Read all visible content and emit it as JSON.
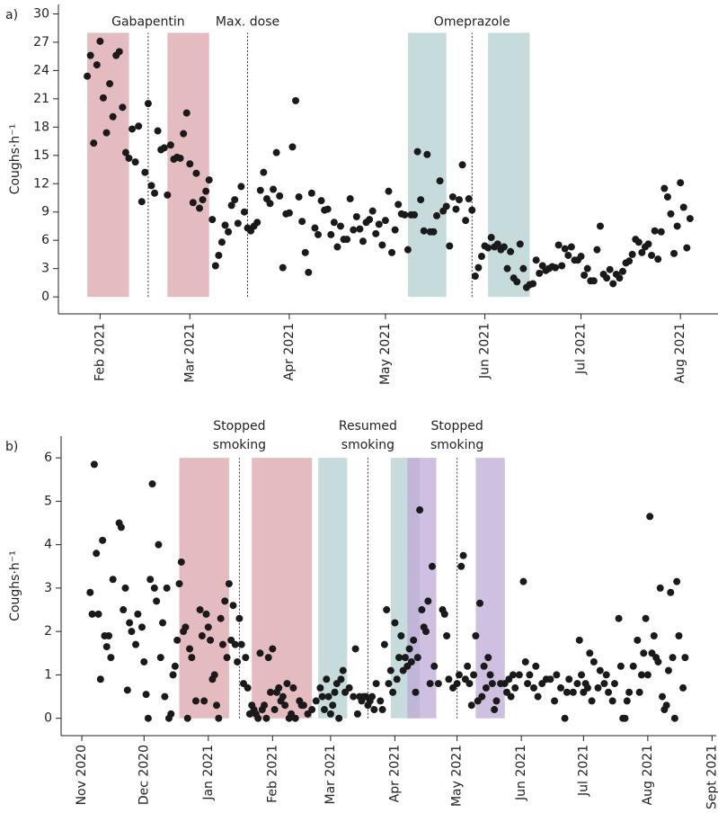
{
  "chart_data": [
    {
      "type": "scatter",
      "panel_label": "a)",
      "y_label": "Coughs·h⁻¹",
      "color": "#1a1a1a",
      "xlim": [
        "2021-01-19",
        "2021-08-13"
      ],
      "ylim": [
        -1.8,
        31
      ],
      "xticks": [
        {
          "value": "2021-02-01",
          "label": "Feb 2021"
        },
        {
          "value": "2021-03-01",
          "label": "Mar 2021"
        },
        {
          "value": "2021-04-01",
          "label": "Apr 2021"
        },
        {
          "value": "2021-05-01",
          "label": "May 2021"
        },
        {
          "value": "2021-06-01",
          "label": "Jun 2021"
        },
        {
          "value": "2021-07-01",
          "label": "Jul 2021"
        },
        {
          "value": "2021-08-01",
          "label": "Aug 2021"
        }
      ],
      "yticks": [
        0,
        3,
        6,
        9,
        12,
        15,
        18,
        21,
        24,
        27,
        30
      ],
      "shade_top": 28,
      "spans": [
        {
          "start": "2021-01-28",
          "end": "2021-02-10",
          "color": "#dba4aa"
        },
        {
          "start": "2021-02-22",
          "end": "2021-03-07",
          "color": "#dba4aa"
        },
        {
          "start": "2021-05-08",
          "end": "2021-05-20",
          "color": "#b3d0d0"
        },
        {
          "start": "2021-06-02",
          "end": "2021-06-15",
          "color": "#b3d0d0"
        }
      ],
      "vlines": [
        {
          "x": "2021-02-16",
          "label": "Gabapentin"
        },
        {
          "x": "2021-03-19",
          "label": "Max. dose"
        },
        {
          "x": "2021-05-28",
          "label": "Omeprazole"
        }
      ],
      "x": [
        "2021-01-28",
        "2021-01-29",
        "2021-01-30",
        "2021-01-31",
        "2021-02-01",
        "2021-02-02",
        "2021-02-03",
        "2021-02-04",
        "2021-02-05",
        "2021-02-06",
        "2021-02-07",
        "2021-02-08",
        "2021-02-09",
        "2021-02-10",
        "2021-02-11",
        "2021-02-12",
        "2021-02-13",
        "2021-02-14",
        "2021-02-15",
        "2021-02-16",
        "2021-02-17",
        "2021-02-18",
        "2021-02-19",
        "2021-02-20",
        "2021-02-21",
        "2021-02-22",
        "2021-02-23",
        "2021-02-24",
        "2021-02-25",
        "2021-02-26",
        "2021-02-27",
        "2021-02-28",
        "2021-03-01",
        "2021-03-02",
        "2021-03-03",
        "2021-03-04",
        "2021-03-05",
        "2021-03-06",
        "2021-03-07",
        "2021-03-08",
        "2021-03-09",
        "2021-03-10",
        "2021-03-11",
        "2021-03-12",
        "2021-03-13",
        "2021-03-14",
        "2021-03-15",
        "2021-03-16",
        "2021-03-17",
        "2021-03-18",
        "2021-03-19",
        "2021-03-20",
        "2021-03-21",
        "2021-03-22",
        "2021-03-23",
        "2021-03-24",
        "2021-03-25",
        "2021-03-26",
        "2021-03-27",
        "2021-03-28",
        "2021-03-29",
        "2021-03-30",
        "2021-03-31",
        "2021-04-01",
        "2021-04-02",
        "2021-04-03",
        "2021-04-04",
        "2021-04-05",
        "2021-04-06",
        "2021-04-07",
        "2021-04-08",
        "2021-04-09",
        "2021-04-10",
        "2021-04-11",
        "2021-04-12",
        "2021-04-13",
        "2021-04-14",
        "2021-04-15",
        "2021-04-16",
        "2021-04-17",
        "2021-04-18",
        "2021-04-19",
        "2021-04-20",
        "2021-04-21",
        "2021-04-22",
        "2021-04-23",
        "2021-04-24",
        "2021-04-25",
        "2021-04-26",
        "2021-04-27",
        "2021-04-28",
        "2021-04-29",
        "2021-04-30",
        "2021-05-01",
        "2021-05-02",
        "2021-05-03",
        "2021-05-04",
        "2021-05-05",
        "2021-05-06",
        "2021-05-07",
        "2021-05-08",
        "2021-05-09",
        "2021-05-10",
        "2021-05-11",
        "2021-05-12",
        "2021-05-13",
        "2021-05-14",
        "2021-05-15",
        "2021-05-16",
        "2021-05-17",
        "2021-05-18",
        "2021-05-19",
        "2021-05-20",
        "2021-05-21",
        "2021-05-22",
        "2021-05-23",
        "2021-05-24",
        "2021-05-25",
        "2021-05-26",
        "2021-05-27",
        "2021-05-28",
        "2021-05-29",
        "2021-05-30",
        "2021-05-31",
        "2021-06-01",
        "2021-06-02",
        "2021-06-03",
        "2021-06-04",
        "2021-06-05",
        "2021-06-06",
        "2021-06-07",
        "2021-06-08",
        "2021-06-09",
        "2021-06-10",
        "2021-06-11",
        "2021-06-12",
        "2021-06-13",
        "2021-06-14",
        "2021-06-15",
        "2021-06-16",
        "2021-06-17",
        "2021-06-18",
        "2021-06-19",
        "2021-06-20",
        "2021-06-21",
        "2021-06-22",
        "2021-06-23",
        "2021-06-24",
        "2021-06-25",
        "2021-06-26",
        "2021-06-27",
        "2021-06-28",
        "2021-06-29",
        "2021-06-30",
        "2021-07-01",
        "2021-07-02",
        "2021-07-03",
        "2021-07-04",
        "2021-07-05",
        "2021-07-06",
        "2021-07-07",
        "2021-07-08",
        "2021-07-09",
        "2021-07-10",
        "2021-07-11",
        "2021-07-12",
        "2021-07-13",
        "2021-07-14",
        "2021-07-15",
        "2021-07-16",
        "2021-07-17",
        "2021-07-18",
        "2021-07-19",
        "2021-07-20",
        "2021-07-21",
        "2021-07-22",
        "2021-07-23",
        "2021-07-24",
        "2021-07-25",
        "2021-07-26",
        "2021-07-27",
        "2021-07-28",
        "2021-07-29",
        "2021-07-30",
        "2021-07-31",
        "2021-08-01",
        "2021-08-02",
        "2021-08-03",
        "2021-08-04"
      ],
      "values": [
        23.4,
        25.6,
        16.3,
        24.6,
        27.1,
        21.1,
        17.4,
        22.6,
        19.1,
        25.6,
        26.0,
        20.1,
        15.3,
        14.7,
        17.8,
        14.3,
        18.1,
        10.1,
        13.2,
        20.5,
        11.8,
        11.0,
        17.6,
        15.6,
        15.8,
        10.8,
        16.1,
        14.6,
        14.8,
        14.7,
        17.3,
        19.5,
        14.1,
        10.0,
        13.1,
        9.4,
        10.3,
        11.2,
        12.4,
        8.2,
        3.3,
        4.4,
        5.8,
        7.6,
        6.9,
        9.7,
        10.3,
        7.8,
        11.7,
        9.0,
        7.3,
        7.0,
        7.5,
        7.9,
        11.3,
        13.2,
        10.4,
        9.9,
        11.4,
        15.3,
        10.7,
        3.1,
        8.8,
        8.9,
        15.9,
        20.8,
        10.6,
        8.0,
        4.7,
        2.6,
        11.0,
        7.3,
        6.6,
        10.2,
        9.2,
        9.3,
        6.6,
        7.9,
        5.3,
        7.5,
        6.1,
        6.1,
        10.4,
        7.1,
        8.5,
        7.2,
        5.9,
        7.9,
        8.2,
        9.1,
        6.7,
        7.7,
        5.5,
        8.1,
        11.2,
        4.7,
        7.1,
        9.8,
        8.8,
        8.7,
        5.0,
        8.7,
        8.7,
        15.4,
        10.3,
        7.0,
        15.1,
        6.9,
        6.9,
        8.6,
        12.3,
        9.1,
        9.6,
        5.4,
        10.6,
        9.3,
        10.3,
        14.0,
        8.1,
        10.4,
        9.2,
        2.2,
        3.1,
        4.3,
        5.4,
        5.2,
        6.3,
        5.3,
        5.6,
        5.0,
        5.3,
        3.0,
        4.8,
        2.0,
        1.6,
        5.6,
        3.0,
        1.0,
        1.3,
        1.4,
        3.9,
        2.5,
        3.3,
        2.8,
        3.0,
        3.2,
        3.1,
        5.5,
        3.3,
        5.1,
        4.4,
        5.3,
        3.9,
        3.9,
        4.3,
        2.3,
        3.0,
        1.7,
        1.7,
        5.0,
        7.5,
        2.4,
        2.0,
        2.9,
        1.4,
        2.4,
        2.0,
        2.7,
        3.6,
        3.8,
        4.5,
        6.1,
        5.8,
        4.7,
        5.3,
        5.6,
        4.4,
        7.0,
        4.0,
        6.9,
        11.5,
        10.6,
        8.8,
        4.6,
        7.5,
        12.1,
        9.5,
        5.2,
        8.3
      ]
    },
    {
      "type": "scatter",
      "panel_label": "b)",
      "y_label": "Coughs·h⁻¹",
      "color": "#1a1a1a",
      "xlim": [
        "2020-10-22",
        "2021-09-03"
      ],
      "ylim": [
        -0.4,
        6.5
      ],
      "xticks": [
        {
          "value": "2020-11-01",
          "label": "Nov 2020"
        },
        {
          "value": "2020-12-01",
          "label": "Dec 2020"
        },
        {
          "value": "2021-01-01",
          "label": "Jan 2021"
        },
        {
          "value": "2021-02-01",
          "label": "Feb 2021"
        },
        {
          "value": "2021-03-01",
          "label": "Mar 2021"
        },
        {
          "value": "2021-04-01",
          "label": "Apr 2021"
        },
        {
          "value": "2021-05-01",
          "label": "May 2021"
        },
        {
          "value": "2021-06-01",
          "label": "Jun 2021"
        },
        {
          "value": "2021-07-01",
          "label": "Jul 2021"
        },
        {
          "value": "2021-08-01",
          "label": "Aug 2021"
        },
        {
          "value": "2021-09-01",
          "label": "Sept 2021"
        }
      ],
      "yticks": [
        0,
        1,
        2,
        3,
        4,
        5,
        6
      ],
      "shade_top": 6,
      "spans": [
        {
          "start": "2020-12-18",
          "end": "2021-01-11",
          "color": "#dba4aa"
        },
        {
          "start": "2021-01-22",
          "end": "2021-02-20",
          "color": "#dba4aa"
        },
        {
          "start": "2021-02-23",
          "end": "2021-03-09",
          "color": "#b3d0d0"
        },
        {
          "start": "2021-03-30",
          "end": "2021-04-13",
          "color": "#b3d0d0"
        },
        {
          "start": "2021-04-07",
          "end": "2021-04-21",
          "color": "#bfa9d6"
        },
        {
          "start": "2021-05-10",
          "end": "2021-05-24",
          "color": "#bfa9d6"
        }
      ],
      "vlines": [
        {
          "x": "2021-01-16",
          "label": [
            "Stopped",
            "smoking"
          ]
        },
        {
          "x": "2021-03-19",
          "label": [
            "Resumed",
            "smoking"
          ]
        },
        {
          "x": "2021-05-01",
          "label": [
            "Stopped",
            "smoking"
          ]
        }
      ],
      "x": [
        "2020-11-05",
        "2020-11-06",
        "2020-11-07",
        "2020-11-08",
        "2020-11-09",
        "2020-11-10",
        "2020-11-11",
        "2020-11-12",
        "2020-11-13",
        "2020-11-14",
        "2020-11-15",
        "2020-11-16",
        "2020-11-19",
        "2020-11-20",
        "2020-11-21",
        "2020-11-22",
        "2020-11-23",
        "2020-11-24",
        "2020-11-25",
        "2020-11-27",
        "2020-11-28",
        "2020-11-30",
        "2020-12-01",
        "2020-12-02",
        "2020-12-03",
        "2020-12-04",
        "2020-12-05",
        "2020-12-06",
        "2020-12-07",
        "2020-12-08",
        "2020-12-09",
        "2020-12-10",
        "2020-12-11",
        "2020-12-12",
        "2020-12-13",
        "2020-12-14",
        "2020-12-15",
        "2020-12-16",
        "2020-12-17",
        "2020-12-18",
        "2020-12-19",
        "2020-12-20",
        "2020-12-21",
        "2020-12-22",
        "2020-12-23",
        "2020-12-24",
        "2020-12-26",
        "2020-12-28",
        "2020-12-29",
        "2020-12-30",
        "2020-12-31",
        "2021-01-01",
        "2021-01-02",
        "2021-01-03",
        "2021-01-04",
        "2021-01-05",
        "2021-01-06",
        "2021-01-07",
        "2021-01-08",
        "2021-01-09",
        "2021-01-10",
        "2021-01-11",
        "2021-01-12",
        "2021-01-13",
        "2021-01-14",
        "2021-01-15",
        "2021-01-16",
        "2021-01-17",
        "2021-01-18",
        "2021-01-19",
        "2021-01-20",
        "2021-01-21",
        "2021-01-22",
        "2021-01-23",
        "2021-01-24",
        "2021-01-25",
        "2021-01-26",
        "2021-01-27",
        "2021-01-28",
        "2021-01-29",
        "2021-01-30",
        "2021-01-31",
        "2021-02-01",
        "2021-02-02",
        "2021-02-03",
        "2021-02-04",
        "2021-02-05",
        "2021-02-06",
        "2021-02-07",
        "2021-02-08",
        "2021-02-09",
        "2021-02-10",
        "2021-02-11",
        "2021-02-12",
        "2021-02-14",
        "2021-02-15",
        "2021-02-16",
        "2021-02-18",
        "2021-02-20",
        "2021-02-22",
        "2021-02-24",
        "2021-02-25",
        "2021-02-26",
        "2021-02-27",
        "2021-02-28",
        "2021-03-01",
        "2021-03-02",
        "2021-03-03",
        "2021-03-04",
        "2021-03-05",
        "2021-03-06",
        "2021-03-07",
        "2021-03-08",
        "2021-03-10",
        "2021-03-12",
        "2021-03-13",
        "2021-03-14",
        "2021-03-15",
        "2021-03-16",
        "2021-03-17",
        "2021-03-18",
        "2021-03-19",
        "2021-03-20",
        "2021-03-21",
        "2021-03-22",
        "2021-03-23",
        "2021-03-25",
        "2021-03-26",
        "2021-03-27",
        "2021-03-28",
        "2021-03-29",
        "2021-03-30",
        "2021-03-31",
        "2021-04-01",
        "2021-04-02",
        "2021-04-03",
        "2021-04-04",
        "2021-04-05",
        "2021-04-06",
        "2021-04-07",
        "2021-04-08",
        "2021-04-09",
        "2021-04-10",
        "2021-04-11",
        "2021-04-12",
        "2021-04-13",
        "2021-04-14",
        "2021-04-15",
        "2021-04-16",
        "2021-04-17",
        "2021-04-18",
        "2021-04-19",
        "2021-04-20",
        "2021-04-22",
        "2021-04-24",
        "2021-04-25",
        "2021-04-26",
        "2021-04-27",
        "2021-04-29",
        "2021-05-01",
        "2021-05-02",
        "2021-05-03",
        "2021-05-04",
        "2021-05-05",
        "2021-05-06",
        "2021-05-07",
        "2021-05-08",
        "2021-05-09",
        "2021-05-10",
        "2021-05-11",
        "2021-05-12",
        "2021-05-13",
        "2021-05-14",
        "2021-05-15",
        "2021-05-16",
        "2021-05-17",
        "2021-05-18",
        "2021-05-19",
        "2021-05-20",
        "2021-05-22",
        "2021-05-24",
        "2021-05-25",
        "2021-05-26",
        "2021-05-27",
        "2021-05-28",
        "2021-05-29",
        "2021-05-31",
        "2021-06-02",
        "2021-06-03",
        "2021-06-04",
        "2021-06-05",
        "2021-06-07",
        "2021-06-08",
        "2021-06-09",
        "2021-06-11",
        "2021-06-13",
        "2021-06-15",
        "2021-06-17",
        "2021-06-18",
        "2021-06-20",
        "2021-06-22",
        "2021-06-23",
        "2021-06-24",
        "2021-06-26",
        "2021-06-28",
        "2021-06-29",
        "2021-06-30",
        "2021-07-01",
        "2021-07-02",
        "2021-07-03",
        "2021-07-04",
        "2021-07-05",
        "2021-07-06",
        "2021-07-08",
        "2021-07-09",
        "2021-07-11",
        "2021-07-12",
        "2021-07-13",
        "2021-07-15",
        "2021-07-16",
        "2021-07-18",
        "2021-07-19",
        "2021-07-20",
        "2021-07-21",
        "2021-07-22",
        "2021-07-23",
        "2021-07-25",
        "2021-07-27",
        "2021-07-28",
        "2021-07-29",
        "2021-07-30",
        "2021-07-31",
        "2021-08-01",
        "2021-08-02",
        "2021-08-03",
        "2021-08-04",
        "2021-08-05",
        "2021-08-06",
        "2021-08-07",
        "2021-08-08",
        "2021-08-09",
        "2021-08-10",
        "2021-08-11",
        "2021-08-12",
        "2021-08-13",
        "2021-08-14",
        "2021-08-15",
        "2021-08-16",
        "2021-08-18",
        "2021-08-19"
      ],
      "values": [
        2.9,
        2.4,
        5.85,
        3.8,
        2.4,
        0.9,
        4.1,
        1.9,
        1.65,
        1.9,
        1.4,
        3.2,
        4.5,
        4.4,
        2.5,
        3.0,
        0.65,
        2.2,
        2.0,
        1.7,
        2.4,
        2.1,
        1.3,
        0.55,
        0.0,
        3.2,
        5.4,
        3.0,
        2.7,
        4.0,
        1.4,
        2.2,
        0.5,
        3.0,
        0.0,
        0.1,
        1.0,
        1.2,
        1.8,
        3.1,
        3.6,
        2.0,
        2.1,
        0.0,
        1.6,
        1.4,
        0.4,
        2.5,
        1.9,
        0.4,
        2.4,
        2.1,
        1.8,
        0.9,
        1.0,
        0.3,
        0.0,
        2.3,
        1.7,
        2.7,
        1.4,
        3.1,
        1.8,
        2.6,
        1.7,
        1.3,
        2.3,
        1.7,
        0.8,
        1.4,
        0.7,
        0.1,
        0.3,
        0.2,
        0.1,
        0.0,
        1.5,
        0.2,
        0.3,
        0.0,
        1.4,
        0.6,
        1.6,
        0.2,
        0.6,
        0.7,
        0.4,
        0.5,
        0.3,
        0.8,
        0.0,
        0.1,
        0.7,
        0.0,
        0.4,
        0.3,
        0.3,
        0.1,
        0.2,
        0.4,
        0.7,
        0.5,
        0.2,
        0.9,
        0.5,
        0.1,
        0.3,
        0.6,
        0.8,
        0.0,
        0.9,
        1.1,
        0.6,
        0.7,
        0.5,
        1.6,
        0.1,
        0.5,
        0.4,
        0.5,
        0.5,
        0.3,
        0.4,
        0.5,
        0.2,
        0.8,
        0.4,
        0.2,
        1.7,
        2.5,
        0.8,
        1.1,
        0.6,
        2.2,
        0.9,
        1.4,
        1.9,
        1.1,
        1.4,
        1.2,
        1.6,
        1.3,
        1.8,
        0.6,
        1.4,
        4.8,
        2.5,
        2.1,
        2.0,
        2.7,
        0.8,
        3.5,
        1.2,
        0.8,
        2.5,
        2.4,
        1.9,
        0.9,
        0.7,
        0.8,
        1.0,
        3.5,
        3.75,
        0.9,
        1.2,
        0.8,
        0.3,
        1.0,
        1.9,
        0.4,
        2.65,
        0.5,
        1.2,
        0.7,
        1.4,
        1.0,
        0.8,
        0.2,
        0.4,
        0.8,
        0.8,
        0.6,
        0.9,
        0.5,
        1.0,
        0.7,
        1.0,
        3.15,
        1.3,
        0.8,
        1.0,
        0.7,
        1.2,
        0.5,
        0.8,
        0.9,
        0.9,
        0.4,
        1.0,
        0.7,
        0.0,
        0.6,
        0.9,
        0.6,
        0.8,
        1.8,
        1.0,
        0.6,
        0.8,
        0.7,
        1.5,
        0.4,
        1.3,
        0.7,
        1.1,
        0.8,
        1.0,
        0.6,
        0.4,
        0.8,
        2.3,
        1.2,
        0.0,
        0.0,
        0.4,
        0.6,
        1.2,
        1.8,
        0.6,
        1.0,
        1.5,
        2.3,
        1.0,
        4.65,
        1.5,
        1.9,
        1.4,
        1.3,
        3.0,
        0.5,
        0.2,
        0.3,
        1.1,
        2.9,
        1.4,
        0.0,
        3.15,
        1.9,
        0.7,
        1.4
      ]
    }
  ]
}
